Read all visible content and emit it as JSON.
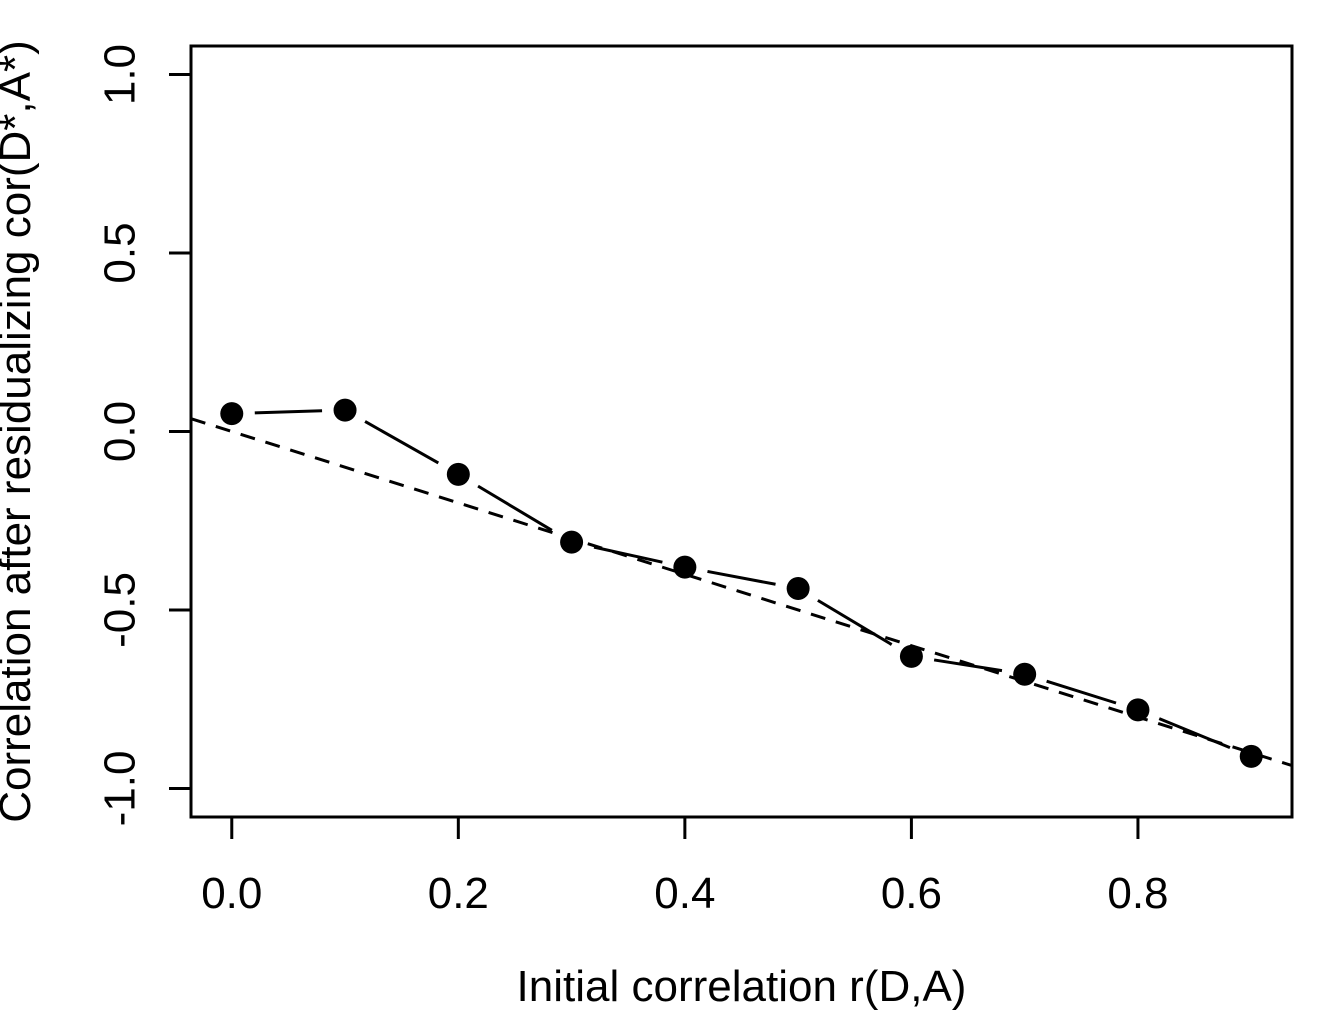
{
  "page": {
    "background_color": "#ffffff",
    "foreground_color": "#000000"
  },
  "chart_data": {
    "type": "line",
    "title": "",
    "xlabel": "Initial correlation r(D,A)",
    "ylabel": "Correlation after residualizing cor(D*,A*)",
    "x": [
      0.0,
      0.1,
      0.2,
      0.3,
      0.4,
      0.5,
      0.6,
      0.7,
      0.8,
      0.9
    ],
    "y": [
      0.05,
      0.06,
      -0.12,
      -0.31,
      -0.38,
      -0.44,
      -0.63,
      -0.68,
      -0.78,
      -0.91
    ],
    "marker": "filled-circle",
    "marker_color": "#000000",
    "line_color": "#000000",
    "line_style": "solid-with-point-gaps",
    "xlim": [
      -0.036,
      0.936
    ],
    "ylim": [
      -1.08,
      1.08
    ],
    "x_tick_values": [
      0.0,
      0.2,
      0.4,
      0.6,
      0.8
    ],
    "x_tick_labels": [
      "0.0",
      "0.2",
      "0.4",
      "0.6",
      "0.8"
    ],
    "y_tick_values": [
      -1.0,
      -0.5,
      0.0,
      0.5,
      1.0
    ],
    "y_tick_labels": [
      "-1.0",
      "-0.5",
      "0.0",
      "0.5",
      "1.0"
    ],
    "reference_line": {
      "style": "dashed",
      "slope": -1,
      "intercept": 0,
      "color": "#000000"
    },
    "grid": false,
    "legend_position": "none"
  }
}
